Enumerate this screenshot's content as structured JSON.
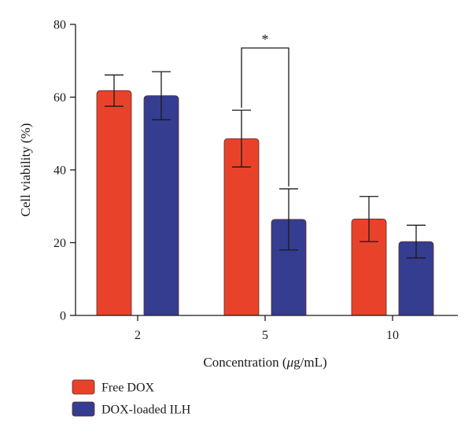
{
  "chart_data": {
    "type": "bar",
    "title": "",
    "xlabel": "Concentration (μg/mL)",
    "ylabel": "Cell viability (%)",
    "ylim": [
      0,
      80
    ],
    "yticks": [
      0,
      20,
      40,
      60,
      80
    ],
    "categories": [
      "2",
      "5",
      "10"
    ],
    "series": [
      {
        "name": "Free DOX",
        "color": "#e8432a",
        "values": [
          61.8,
          48.6,
          26.5
        ],
        "errors": [
          4.3,
          7.8,
          6.2
        ]
      },
      {
        "name": "DOX-loaded ILH",
        "color": "#353d91",
        "values": [
          60.4,
          26.4,
          20.3
        ],
        "errors": [
          6.6,
          8.4,
          4.5
        ]
      }
    ],
    "grid": false,
    "legend": "bottom-left",
    "annotations": [
      {
        "text": "*",
        "between": {
          "category": "5",
          "series": [
            "Free DOX",
            "DOX-loaded ILH"
          ]
        }
      }
    ]
  }
}
